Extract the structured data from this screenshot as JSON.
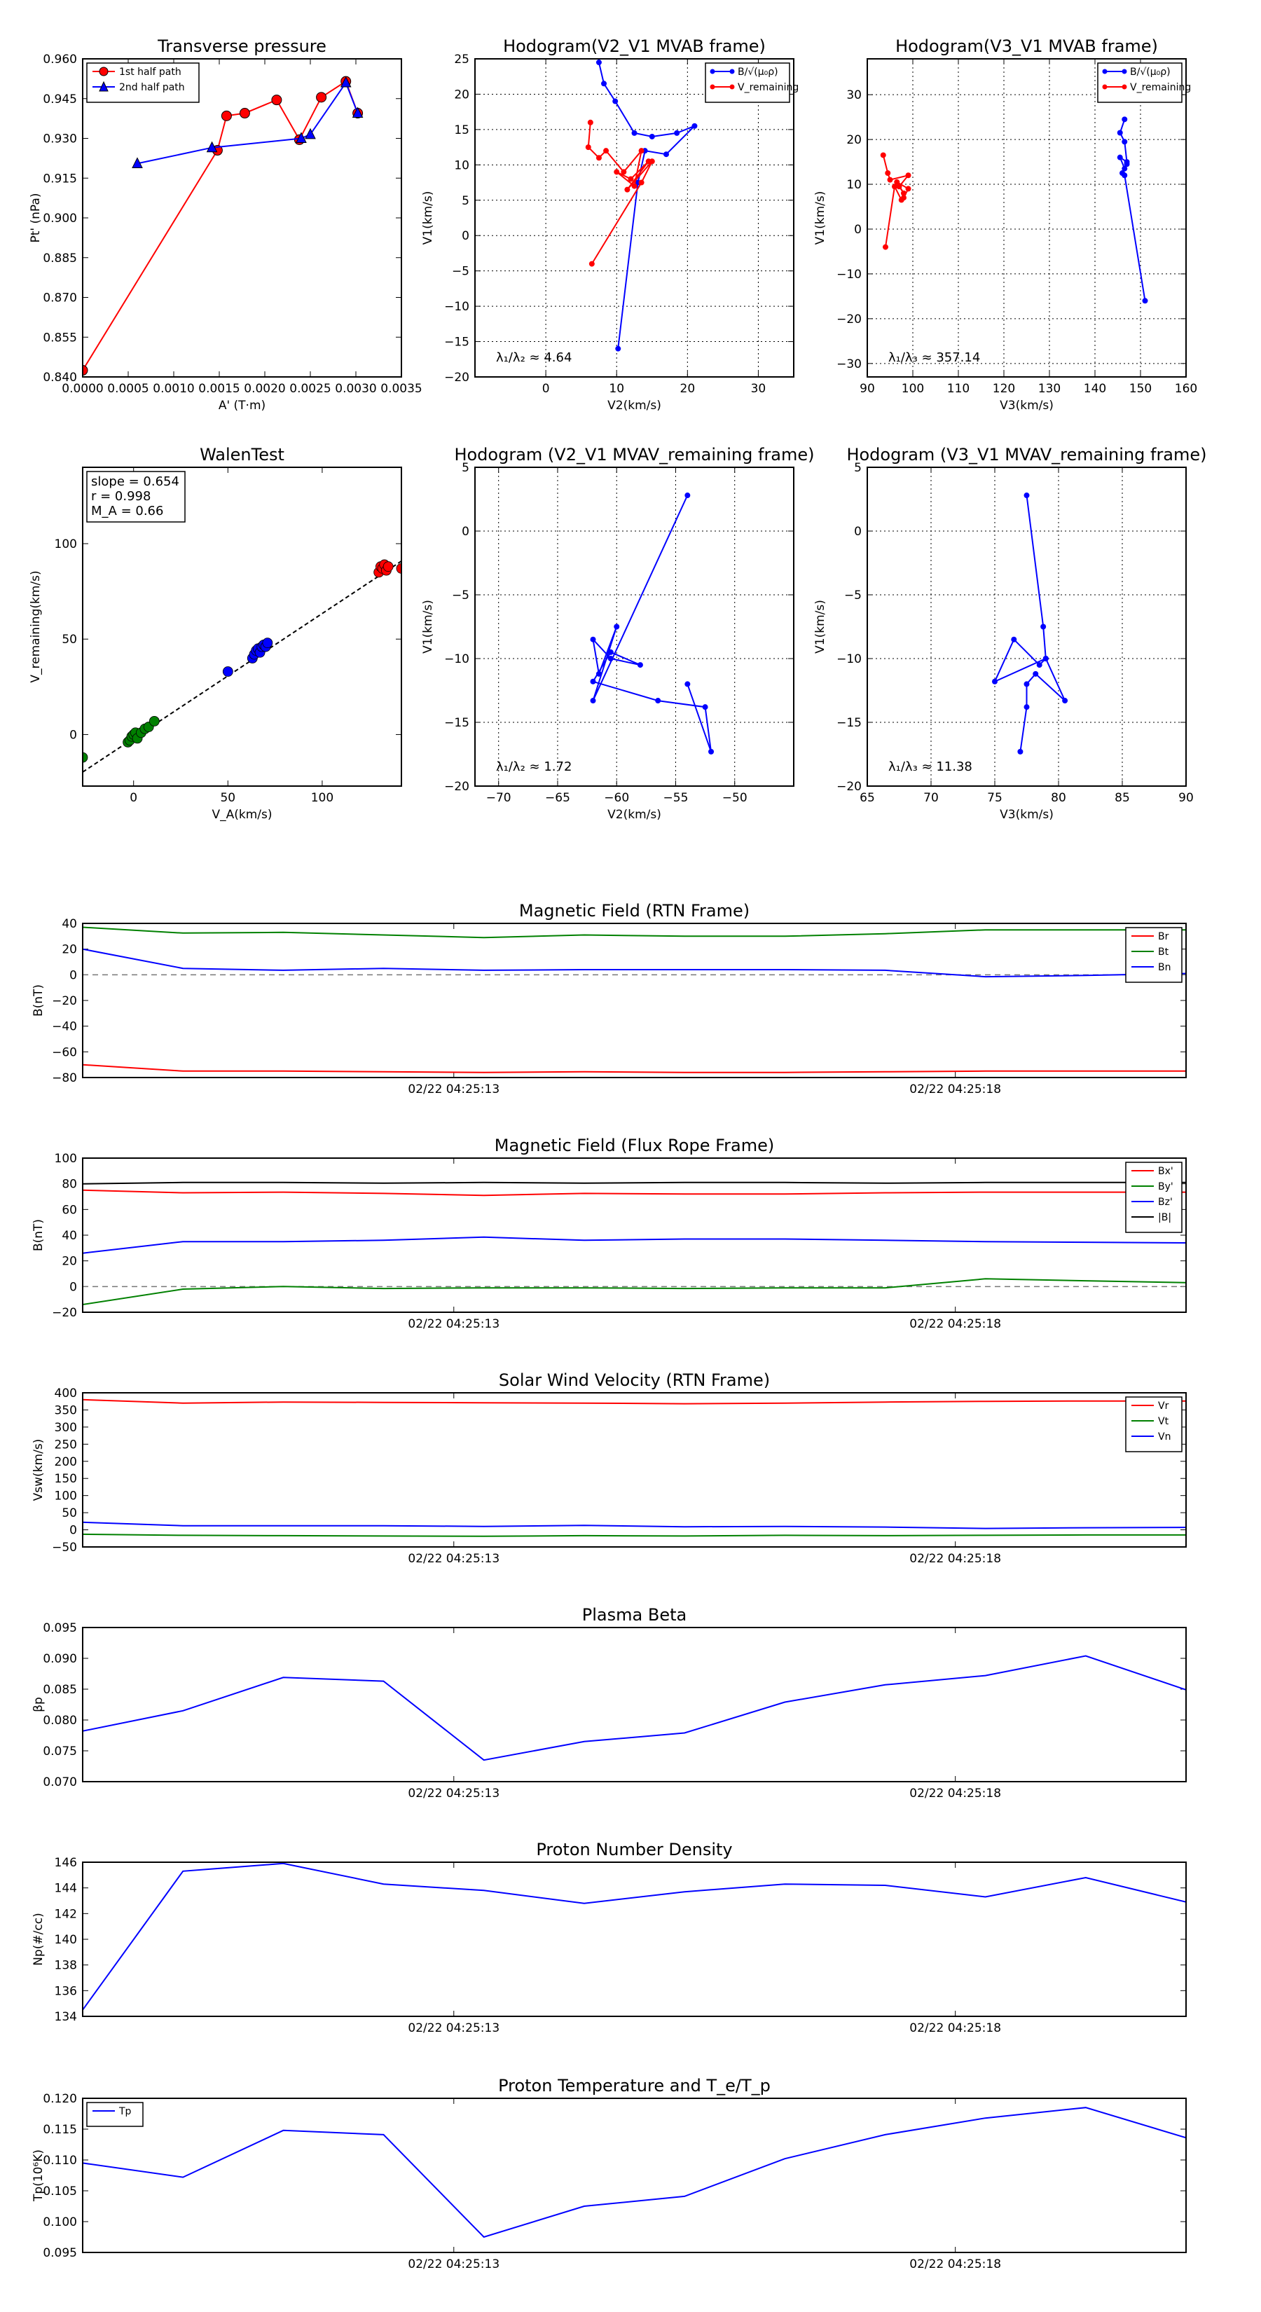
{
  "chart_data": [
    {
      "id": "transverse-pressure",
      "type": "line",
      "title": "Transverse pressure",
      "xlabel": "A' (T·m)",
      "ylabel": "Pt' (nPa)",
      "xlim": [
        0.0,
        0.0035
      ],
      "ylim": [
        0.84,
        0.96
      ],
      "xticks": [
        "0.0000",
        "0.0005",
        "0.0010",
        "0.0015",
        "0.0020",
        "0.0025",
        "0.0030",
        "0.0035"
      ],
      "yticks": [
        "0.840",
        "0.855",
        "0.870",
        "0.885",
        "0.900",
        "0.915",
        "0.930",
        "0.945",
        "0.960"
      ],
      "grid": false,
      "legend_position": "top-left",
      "series": [
        {
          "name": "1st half path",
          "color": "#ff0000",
          "marker": "circle",
          "x": [
            0.0,
            0.00148,
            0.00158,
            0.00178,
            0.00213,
            0.00238,
            0.00262,
            0.00289,
            0.00302
          ],
          "y": [
            0.8425,
            0.9255,
            0.9385,
            0.9395,
            0.9445,
            0.9295,
            0.9455,
            0.9515,
            0.9395
          ]
        },
        {
          "name": "2nd half path",
          "color": "#0000ff",
          "marker": "triangle",
          "x": [
            0.00302,
            0.00289,
            0.0025,
            0.0024,
            0.00142,
            0.0006
          ],
          "y": [
            0.9395,
            0.951,
            0.9315,
            0.93,
            0.9265,
            0.9205
          ]
        }
      ]
    },
    {
      "id": "hodogram-v2v1-mvab",
      "type": "line",
      "title": "Hodogram(V2_V1 MVAB frame)",
      "xlabel": "V2(km/s)",
      "ylabel": "V1(km/s)",
      "xlim": [
        -10,
        35
      ],
      "ylim": [
        -20,
        25
      ],
      "xticks": [
        "0",
        "10",
        "20",
        "30"
      ],
      "yticks": [
        "−20",
        "−15",
        "−10",
        "−5",
        "0",
        "5",
        "10",
        "15",
        "20",
        "25"
      ],
      "grid": true,
      "legend_position": "top-right",
      "annotation": "λ₁/λ₂ ≈ 4.64",
      "series": [
        {
          "name": "B/√(μ₀ρ)",
          "color": "#0000ff",
          "marker": "dot",
          "x": [
            7.5,
            8.2,
            9.8,
            12.5,
            15.0,
            18.5,
            21.0,
            17.0,
            14.0,
            13.0,
            10.2
          ],
          "y": [
            24.5,
            21.5,
            19.0,
            14.5,
            14.0,
            14.5,
            15.5,
            11.5,
            12.0,
            7.5,
            -16.0
          ]
        },
        {
          "name": "V_remaining",
          "color": "#ff0000",
          "marker": "dot",
          "x": [
            6.3,
            6.0,
            7.5,
            8.5,
            11.0,
            13.5,
            12.5,
            10.0,
            12.0,
            14.5,
            11.5,
            15.0,
            13.5,
            6.5
          ],
          "y": [
            16.0,
            12.5,
            11.0,
            12.0,
            9.0,
            12.0,
            7.0,
            9.0,
            8.0,
            10.5,
            6.5,
            10.5,
            7.5,
            -4.0
          ]
        }
      ]
    },
    {
      "id": "hodogram-v3v1-mvab",
      "type": "line",
      "title": "Hodogram(V3_V1 MVAB frame)",
      "xlabel": "V3(km/s)",
      "ylabel": "V1(km/s)",
      "xlim": [
        90,
        160
      ],
      "ylim": [
        -33,
        38
      ],
      "xticks": [
        "90",
        "100",
        "110",
        "120",
        "130",
        "140",
        "150",
        "160"
      ],
      "yticks": [
        "−30",
        "−20",
        "−10",
        "0",
        "10",
        "20",
        "30"
      ],
      "grid": true,
      "legend_position": "top-right",
      "annotation": "λ₁/λ₃ ≈ 357.14",
      "series": [
        {
          "name": "B/√(μ₀ρ)",
          "color": "#0000ff",
          "marker": "dot",
          "x": [
            146.5,
            145.5,
            146.5,
            147.0,
            145.5,
            146.5,
            147.0,
            146.0,
            146.5,
            151.0
          ],
          "y": [
            24.5,
            21.5,
            19.5,
            15.0,
            16.0,
            13.5,
            14.5,
            12.5,
            12.0,
            -16.0
          ]
        },
        {
          "name": "V_remaining",
          "color": "#ff0000",
          "marker": "dot",
          "x": [
            93.5,
            94.5,
            95.0,
            99.0,
            97.0,
            98.0,
            96.5,
            99.0,
            98.0,
            97.5,
            96.0,
            94.0
          ],
          "y": [
            16.5,
            12.5,
            11.0,
            12.0,
            9.5,
            8.0,
            10.5,
            9.0,
            7.0,
            6.5,
            9.5,
            -4.0
          ]
        }
      ]
    },
    {
      "id": "walen-test",
      "type": "scatter",
      "title": "WalenTest",
      "xlabel": "V_A(km/s)",
      "ylabel": "V_remaining(km/s)",
      "xlim": [
        -27,
        142
      ],
      "ylim": [
        -27,
        140
      ],
      "xticks": [
        "0",
        "50",
        "100"
      ],
      "yticks": [
        "0",
        "50",
        "100"
      ],
      "grid": false,
      "annotation_lines": [
        "slope = 0.654",
        "r = 0.998",
        "M_A = 0.66"
      ],
      "fit_line": {
        "slope": 0.654,
        "intercept": -2.0,
        "color": "#000000",
        "dash": "6,4"
      },
      "series": [
        {
          "name": "",
          "color": "#008000",
          "x": [
            -27,
            -3,
            -2,
            -1,
            0,
            1,
            2,
            4,
            6,
            8,
            11
          ],
          "y": [
            -12,
            -4,
            -3,
            -1,
            0,
            1,
            -2,
            1,
            3,
            4,
            7
          ]
        },
        {
          "name": "",
          "color": "#0000ff",
          "x": [
            50,
            63,
            64,
            65,
            66,
            67,
            68,
            69,
            70,
            71
          ],
          "y": [
            33,
            40,
            42,
            44,
            45,
            43,
            46,
            47,
            46,
            48
          ]
        },
        {
          "name": "",
          "color": "#ff0000",
          "x": [
            130,
            131,
            132,
            133,
            134,
            135,
            142
          ],
          "y": [
            85,
            88,
            87,
            89,
            86,
            88,
            87
          ]
        }
      ]
    },
    {
      "id": "hodogram-v2v1-mvav",
      "type": "line",
      "title": "Hodogram (V2_V1 MVAV_remaining frame)",
      "xlabel": "V2(km/s)",
      "ylabel": "V1(km/s)",
      "xlim": [
        -72,
        -45
      ],
      "ylim": [
        -20,
        5
      ],
      "xticks": [
        "−70",
        "−65",
        "−60",
        "−55",
        "−50"
      ],
      "yticks": [
        "−20",
        "−15",
        "−10",
        "−5",
        "0",
        "5"
      ],
      "grid": true,
      "annotation": "λ₁/λ₂ ≈ 1.72",
      "series": [
        {
          "name": "",
          "color": "#0000ff",
          "marker": "dot",
          "x": [
            -54.0,
            -62.0,
            -60.0,
            -61.5,
            -62.0,
            -60.5,
            -58.0,
            -60.5,
            -62.0,
            -56.5,
            -52.5,
            -52.0,
            -54.0
          ],
          "y": [
            2.8,
            -13.3,
            -7.5,
            -11.2,
            -8.5,
            -10.0,
            -10.5,
            -9.5,
            -11.8,
            -13.3,
            -13.8,
            -17.3,
            -12.0
          ]
        }
      ]
    },
    {
      "id": "hodogram-v3v1-mvav",
      "type": "line",
      "title": "Hodogram (V3_V1 MVAV_remaining frame)",
      "xlabel": "V3(km/s)",
      "ylabel": "V1(km/s)",
      "xlim": [
        65,
        90
      ],
      "ylim": [
        -20,
        5
      ],
      "xticks": [
        "65",
        "70",
        "75",
        "80",
        "85",
        "90"
      ],
      "yticks": [
        "−20",
        "−15",
        "−10",
        "−5",
        "0",
        "5"
      ],
      "grid": true,
      "annotation": "λ₁/λ₃ ≈ 11.38",
      "series": [
        {
          "name": "",
          "color": "#0000ff",
          "marker": "dot",
          "x": [
            77.5,
            78.8,
            79.0,
            78.5,
            76.5,
            75.0,
            79.0,
            80.5,
            78.2,
            77.5,
            77.5,
            77.0
          ],
          "y": [
            2.8,
            -7.5,
            -10.0,
            -10.5,
            -8.5,
            -11.8,
            -10.0,
            -13.3,
            -11.2,
            -12.0,
            -13.8,
            -17.3
          ]
        }
      ]
    },
    {
      "id": "magnetic-field-rtn",
      "type": "line",
      "title": "Magnetic Field (RTN Frame)",
      "xlabel": "",
      "ylabel": "B(nT)",
      "xlim": [
        0,
        11
      ],
      "ylim": [
        -80,
        40
      ],
      "x_tick_positions": [
        3.7,
        8.7
      ],
      "x_tick_labels": [
        "02/22 04:25:13",
        "02/22 04:25:18"
      ],
      "yticks": [
        "−80",
        "−60",
        "−40",
        "−20",
        "0",
        "20",
        "40"
      ],
      "zero_line": true,
      "grid": false,
      "legend_position": "top-right",
      "x": [
        0,
        1,
        2,
        3,
        4,
        5,
        6,
        7,
        8,
        9,
        10,
        11
      ],
      "series": [
        {
          "name": "Br",
          "color": "#ff0000",
          "values": [
            -70,
            -75,
            -75,
            -75.5,
            -76,
            -75.5,
            -76,
            -76,
            -75.5,
            -75,
            -75,
            -75
          ]
        },
        {
          "name": "Bt",
          "color": "#008000",
          "values": [
            37,
            32.5,
            33,
            31,
            29,
            31,
            30,
            30,
            32,
            35,
            35,
            35
          ]
        },
        {
          "name": "Bn",
          "color": "#0000ff",
          "values": [
            20,
            5,
            3.5,
            5,
            3.5,
            4,
            4,
            4,
            3.5,
            -1.5,
            -0.5,
            1
          ]
        }
      ]
    },
    {
      "id": "magnetic-field-flux-rope",
      "type": "line",
      "title": "Magnetic Field (Flux Rope Frame)",
      "xlabel": "",
      "ylabel": "B(nT)",
      "xlim": [
        0,
        11
      ],
      "ylim": [
        -20,
        100
      ],
      "x_tick_positions": [
        3.7,
        8.7
      ],
      "x_tick_labels": [
        "02/22 04:25:13",
        "02/22 04:25:18"
      ],
      "yticks": [
        "−20",
        "0",
        "20",
        "40",
        "60",
        "80",
        "100"
      ],
      "zero_line": true,
      "grid": false,
      "legend_position": "top-right",
      "x": [
        0,
        1,
        2,
        3,
        4,
        5,
        6,
        7,
        8,
        9,
        10,
        11
      ],
      "series": [
        {
          "name": "Bx'",
          "color": "#ff0000",
          "values": [
            75,
            73,
            73.5,
            72.5,
            71,
            72.5,
            72,
            72,
            73,
            73.5,
            73.5,
            73.5
          ]
        },
        {
          "name": "By'",
          "color": "#008000",
          "values": [
            -14,
            -2,
            0,
            -1.5,
            -1,
            -1,
            -1.5,
            -1,
            -1,
            6,
            4.5,
            3
          ]
        },
        {
          "name": "Bz'",
          "color": "#0000ff",
          "values": [
            26,
            35,
            35,
            36,
            38.5,
            36,
            37,
            37,
            36,
            35,
            34.5,
            34
          ]
        },
        {
          "name": "|B|",
          "color": "#000000",
          "values": [
            80,
            81,
            81,
            80.5,
            81,
            80.5,
            81,
            81,
            80.5,
            81,
            81,
            81
          ]
        }
      ]
    },
    {
      "id": "solar-wind-velocity",
      "type": "line",
      "title": "Solar Wind Velocity (RTN Frame)",
      "xlabel": "",
      "ylabel": "Vsw(km/s)",
      "xlim": [
        0,
        11
      ],
      "ylim": [
        -50,
        400
      ],
      "x_tick_positions": [
        3.7,
        8.7
      ],
      "x_tick_labels": [
        "02/22 04:25:13",
        "02/22 04:25:18"
      ],
      "yticks": [
        "−50",
        "0",
        "50",
        "100",
        "150",
        "200",
        "250",
        "300",
        "350",
        "400"
      ],
      "grid": false,
      "legend_position": "top-right",
      "x": [
        0,
        1,
        2,
        3,
        4,
        5,
        6,
        7,
        8,
        9,
        10,
        11
      ],
      "series": [
        {
          "name": "Vr",
          "color": "#ff0000",
          "values": [
            380,
            370,
            373,
            372,
            371,
            370,
            368,
            370,
            373,
            375,
            376,
            376
          ]
        },
        {
          "name": "Vt",
          "color": "#008000",
          "values": [
            -13,
            -16,
            -17,
            -18,
            -19,
            -17,
            -18,
            -16,
            -17,
            -16,
            -15,
            -15
          ]
        },
        {
          "name": "Vn",
          "color": "#0000ff",
          "values": [
            22,
            12,
            12,
            12,
            10,
            13,
            9,
            10,
            8,
            4,
            6,
            7
          ]
        }
      ]
    },
    {
      "id": "plasma-beta",
      "type": "line",
      "title": "Plasma Beta",
      "xlabel": "",
      "ylabel": "βp",
      "xlim": [
        0,
        11
      ],
      "ylim": [
        0.07,
        0.095
      ],
      "x_tick_positions": [
        3.7,
        8.7
      ],
      "x_tick_labels": [
        "02/22 04:25:13",
        "02/22 04:25:18"
      ],
      "yticks": [
        "0.070",
        "0.075",
        "0.080",
        "0.085",
        "0.090",
        "0.095"
      ],
      "grid": false,
      "x": [
        0,
        1,
        2,
        3,
        4,
        5,
        6,
        7,
        8,
        9,
        10,
        11
      ],
      "series": [
        {
          "name": "",
          "color": "#0000ff",
          "values": [
            0.0782,
            0.0815,
            0.0869,
            0.0863,
            0.0735,
            0.0765,
            0.0779,
            0.0829,
            0.0857,
            0.0872,
            0.0904,
            0.0849
          ]
        }
      ]
    },
    {
      "id": "proton-number-density",
      "type": "line",
      "title": "Proton Number Density",
      "xlabel": "",
      "ylabel": "Np(#/cc)",
      "xlim": [
        0,
        11
      ],
      "ylim": [
        134,
        146
      ],
      "x_tick_positions": [
        3.7,
        8.7
      ],
      "x_tick_labels": [
        "02/22 04:25:13",
        "02/22 04:25:18"
      ],
      "yticks": [
        "134",
        "136",
        "138",
        "140",
        "142",
        "144",
        "146"
      ],
      "grid": false,
      "x": [
        0,
        1,
        2,
        3,
        4,
        5,
        6,
        7,
        8,
        9,
        10,
        11
      ],
      "series": [
        {
          "name": "",
          "color": "#0000ff",
          "values": [
            134.5,
            145.3,
            145.9,
            144.3,
            143.8,
            142.8,
            143.7,
            144.3,
            144.2,
            143.3,
            144.8,
            142.9
          ]
        }
      ]
    },
    {
      "id": "proton-temperature",
      "type": "line",
      "title": "Proton Temperature and T_e/T_p",
      "xlabel": "",
      "ylabel": "Tp(10⁶K)",
      "xlim": [
        0,
        11
      ],
      "ylim": [
        0.095,
        0.12
      ],
      "x_tick_positions": [
        3.7,
        8.7
      ],
      "x_tick_labels": [
        "02/22 04:25:13",
        "02/22 04:25:18"
      ],
      "yticks": [
        "0.095",
        "0.100",
        "0.105",
        "0.110",
        "0.115",
        "0.120"
      ],
      "grid": false,
      "legend_position": "top-left",
      "x": [
        0,
        1,
        2,
        3,
        4,
        5,
        6,
        7,
        8,
        9,
        10,
        11
      ],
      "series": [
        {
          "name": "Tp",
          "color": "#0000ff",
          "values": [
            0.1095,
            0.1072,
            0.1148,
            0.1141,
            0.0975,
            0.1025,
            0.1041,
            0.1102,
            0.1141,
            0.1168,
            0.1185,
            0.1136
          ]
        }
      ]
    }
  ]
}
